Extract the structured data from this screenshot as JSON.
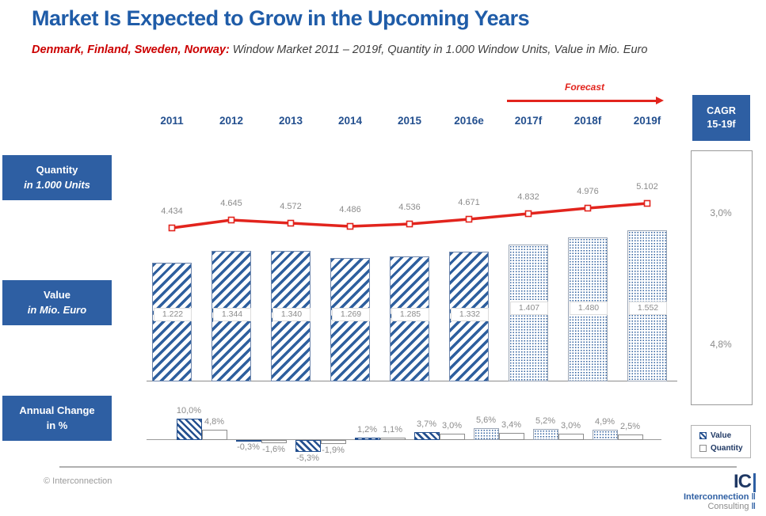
{
  "title": "Market Is Expected to Grow in the Upcoming Years",
  "subtitle": {
    "countries": "Denmark, Finland, Sweden, Norway:",
    "rest": " Window Market 2011 – 2019f, Quantity in 1.000 Window Units, Value in Mio. Euro"
  },
  "forecast_label": "Forecast",
  "row_labels": {
    "quantity": {
      "line1": "Quantity",
      "line2": "in 1.000 Units"
    },
    "value": {
      "line1": "Value",
      "line2": "in Mio. Euro"
    },
    "annual": {
      "line1": "Annual Change",
      "line2": "in %"
    }
  },
  "cagr_box": {
    "line1": "CAGR",
    "line2": "15-19f"
  },
  "legend": {
    "value_label": "Value",
    "quantity_label": "Quantity"
  },
  "footer": {
    "copyright": "© Interconnection",
    "logo_ic": "IC",
    "logo_line1": "Interconnection",
    "logo_line2": "Consulting"
  },
  "colors": {
    "brand_blue": "#2E5FA3",
    "title_blue": "#1F5CA8",
    "hatch_blue": "#2E5F9E",
    "red": "#E2241D",
    "gray_text": "#8C8C8C"
  },
  "chart_data": {
    "type": "bar",
    "title": "Window Market 2011 – 2019f, Denmark, Finland, Sweden, Norway",
    "categories": [
      "2011",
      "2012",
      "2013",
      "2014",
      "2015",
      "2016e",
      "2017f",
      "2018f",
      "2019f"
    ],
    "forecast_start_index": 6,
    "series": [
      {
        "name": "Quantity in 1.000 Units",
        "type": "line",
        "values": [
          4434,
          4645,
          4572,
          4486,
          4536,
          4671,
          4832,
          4976,
          5102
        ],
        "labels": [
          "4.434",
          "4.645",
          "4.572",
          "4.486",
          "4.536",
          "4.671",
          "4.832",
          "4.976",
          "5.102"
        ]
      },
      {
        "name": "Value in Mio. Euro",
        "type": "bar",
        "values": [
          1222,
          1344,
          1340,
          1269,
          1285,
          1332,
          1407,
          1480,
          1552
        ],
        "labels": [
          "1.222",
          "1.344",
          "1.340",
          "1.269",
          "1.285",
          "1.332",
          "1.407",
          "1.480",
          "1.552"
        ]
      }
    ],
    "annual_change": {
      "categories": [
        "2012",
        "2013",
        "2014",
        "2015",
        "2016e",
        "2017f",
        "2018f",
        "2019f"
      ],
      "value_pct": [
        10.0,
        -0.3,
        -5.3,
        1.2,
        3.7,
        5.6,
        5.2,
        4.9
      ],
      "quantity_pct": [
        4.8,
        -1.6,
        -1.9,
        1.1,
        3.0,
        3.4,
        3.0,
        2.5
      ],
      "value_labels": [
        "10,0%",
        "-0,3%",
        "-5,3%",
        "1,2%",
        "3,7%",
        "5,6%",
        "5,2%",
        "4,9%"
      ],
      "quantity_labels": [
        "4,8%",
        "-1,6%",
        "-1,9%",
        "1,1%",
        "3,0%",
        "3,4%",
        "3,0%",
        "2,5%"
      ]
    },
    "cagr_15_19f": {
      "quantity_pct": "3,0%",
      "value_pct": "4,8%"
    },
    "legend_position": "right-bottom",
    "grid": false
  }
}
